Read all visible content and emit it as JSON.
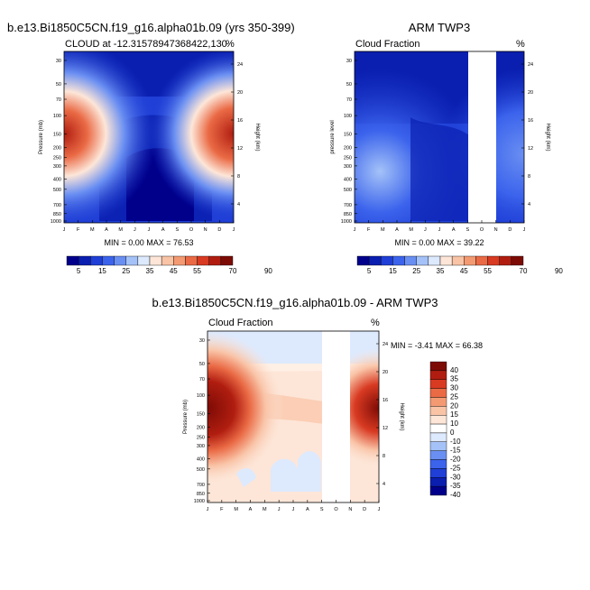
{
  "panel1": {
    "suptitle": "b.e13.Bi1850C5CN.f19_g16.alpha01b.09 (yrs 350-399)",
    "title": "CLOUD at -12.31578947368422,130",
    "units": "%",
    "ylabel": "Pressure (mb)",
    "right_label": "Height (km)",
    "stats": "MIN =  0.00 MAX =  76.53"
  },
  "panel2": {
    "suptitle": "ARM TWP3",
    "title": "Cloud Fraction",
    "units": "%",
    "ylabel": "pressure level",
    "right_label": "Height (km)",
    "stats": "MIN =  0.00 MAX =  39.22"
  },
  "panel3": {
    "suptitle": "b.e13.Bi1850C5CN.f19_g16.alpha01b.09 - ARM TWP3",
    "title": "Cloud Fraction",
    "units": "%",
    "ylabel": "Pressure (mb)",
    "right_label": "Height (km)",
    "stats": "MIN =  -3.41 MAX =  66.38"
  },
  "axes": {
    "months": [
      "J",
      "F",
      "M",
      "A",
      "M",
      "J",
      "J",
      "A",
      "S",
      "O",
      "N",
      "D",
      "J"
    ],
    "pressure_ticks": [
      "30",
      "50",
      "70",
      "100",
      "150",
      "200",
      "250",
      "300",
      "400",
      "500",
      "700",
      "850",
      "1000"
    ],
    "height_ticks": [
      "24",
      "20",
      "16",
      "12",
      "8",
      "4"
    ]
  },
  "colorbar_abs": {
    "labels": [
      "5",
      "15",
      "25",
      "35",
      "45",
      "55",
      "70",
      "90"
    ],
    "colors": [
      "#00008b",
      "#0a1fb0",
      "#1f3fd6",
      "#3b63ec",
      "#6a8ff2",
      "#a4c2f8",
      "#dde9fd",
      "#fde6d8",
      "#f9c3a6",
      "#f49a73",
      "#ea6a45",
      "#d83a22",
      "#b01d10",
      "#7d0b05"
    ]
  },
  "colorbar_diff": {
    "labels": [
      "40",
      "35",
      "30",
      "25",
      "20",
      "15",
      "10",
      "0",
      "-10",
      "-15",
      "-20",
      "-25",
      "-30",
      "-35",
      "-40"
    ],
    "colors": [
      "#7d0b05",
      "#b01d10",
      "#d83a22",
      "#ea6a45",
      "#f49a73",
      "#f9c3a6",
      "#fde6d8",
      "#ffffff",
      "#dde9fd",
      "#a4c2f8",
      "#6a8ff2",
      "#3b63ec",
      "#1f3fd6",
      "#0a1fb0",
      "#00008b"
    ]
  },
  "chart_data": [
    {
      "type": "heatmap",
      "title": "CLOUD at -12.31578947368422,130",
      "x": [
        "J",
        "F",
        "M",
        "A",
        "M",
        "J",
        "J",
        "A",
        "S",
        "O",
        "N",
        "D",
        "J"
      ],
      "y_pressure_mb": [
        30,
        50,
        70,
        100,
        150,
        200,
        250,
        300,
        400,
        500,
        700,
        850,
        1000
      ],
      "min": 0.0,
      "max": 76.53,
      "description_values": "peak ~75% near 150 mb in Jan-Feb and Dec; low (<10%) cloud May-Nov below 250 mb"
    },
    {
      "type": "heatmap",
      "title": "Cloud Fraction",
      "x": [
        "J",
        "F",
        "M",
        "A",
        "M",
        "J",
        "J",
        "A",
        "S",
        "O",
        "N",
        "D",
        "J"
      ],
      "y_pressure_mb": [
        30,
        50,
        70,
        100,
        150,
        200,
        250,
        300,
        400,
        500,
        700,
        850,
        1000
      ],
      "min": 0.0,
      "max": 39.22,
      "missing_months": [
        "S",
        "O"
      ]
    },
    {
      "type": "heatmap",
      "title": "Cloud Fraction",
      "x": [
        "J",
        "F",
        "M",
        "A",
        "M",
        "J",
        "J",
        "A",
        "S",
        "O",
        "N",
        "D",
        "J"
      ],
      "y_pressure_mb": [
        30,
        50,
        70,
        100,
        150,
        200,
        250,
        300,
        400,
        500,
        700,
        850,
        1000
      ],
      "min": -3.41,
      "max": 66.38,
      "missing_months": [
        "S",
        "O"
      ]
    }
  ]
}
